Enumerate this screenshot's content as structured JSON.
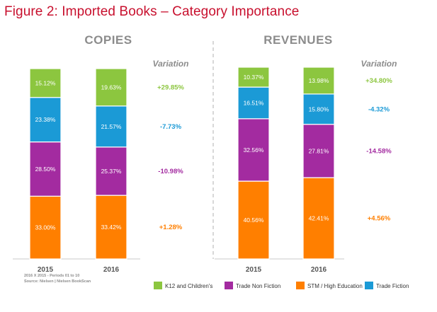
{
  "figure": {
    "title": "Figure 2: Imported Books – Category Importance",
    "note_line1": "2016 X 2015 - Periods 01 to 10",
    "note_line2": "Source: Nielsen | Nielsen BookScan"
  },
  "colors": {
    "K12 and Children's": "#8cc63f",
    "Trade Non Fiction": "#a32ba0",
    "STM / High Education": "#ff7f00",
    "Trade Fiction": "#1b9ad6",
    "title": "#c8102e"
  },
  "chart_data": [
    {
      "type": "bar",
      "stacked": true,
      "title": "COPIES",
      "categories": [
        "2015",
        "2016"
      ],
      "variation_label": "Variation",
      "series": [
        {
          "name": "STM / High Education",
          "values": [
            33.0,
            33.42
          ],
          "labels": [
            "33.00%",
            "33.42%"
          ],
          "variation": "+1.28%"
        },
        {
          "name": "Trade Non Fiction",
          "values": [
            28.5,
            25.37
          ],
          "labels": [
            "28.50%",
            "25.37%"
          ],
          "variation": "-10.98%"
        },
        {
          "name": "Trade Fiction",
          "values": [
            23.38,
            21.57
          ],
          "labels": [
            "23.38%",
            "21.57%"
          ],
          "variation": "-7.73%"
        },
        {
          "name": "K12 and Children's",
          "values": [
            15.12,
            19.63
          ],
          "labels": [
            "15.12%",
            "19.63%"
          ],
          "variation": "+29.85%"
        }
      ],
      "ylim": [
        0,
        100
      ]
    },
    {
      "type": "bar",
      "stacked": true,
      "title": "REVENUES",
      "categories": [
        "2015",
        "2016"
      ],
      "variation_label": "Variation",
      "series": [
        {
          "name": "STM / High Education",
          "values": [
            40.56,
            42.41
          ],
          "labels": [
            "40.56%",
            "42.41%"
          ],
          "variation": "+4.56%"
        },
        {
          "name": "Trade Non Fiction",
          "values": [
            32.56,
            27.81
          ],
          "labels": [
            "32.56%",
            "27.81%"
          ],
          "variation": "-14.58%"
        },
        {
          "name": "Trade Fiction",
          "values": [
            16.51,
            15.8
          ],
          "labels": [
            "16.51%",
            "15.80%"
          ],
          "variation": "-4.32%"
        },
        {
          "name": "K12 and Children's",
          "values": [
            10.37,
            13.98
          ],
          "labels": [
            "10.37%",
            "13.98%"
          ],
          "variation": "+34.80%"
        }
      ],
      "ylim": [
        0,
        100
      ]
    }
  ],
  "legend": {
    "placement": "bottom-right",
    "entries": [
      "K12 and Children's",
      "Trade Non Fiction",
      "STM / High Education",
      "Trade Fiction"
    ]
  }
}
